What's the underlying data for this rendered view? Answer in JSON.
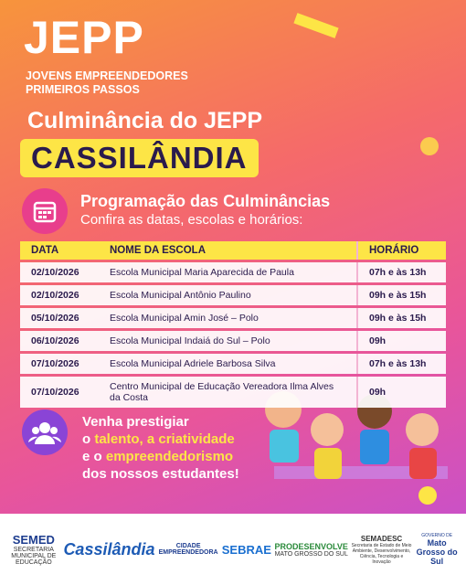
{
  "header": {
    "brand": "JEPP",
    "tagline": [
      "JOVENS EMPREENDEDORES",
      "PRIMEIROS PASSOS"
    ]
  },
  "title": {
    "event": "Culminância do JEPP",
    "city": "CASSILÂNDIA"
  },
  "section": {
    "heading": "Programação das Culminâncias",
    "subheading": "Confira as datas, escolas e horários:"
  },
  "table": {
    "columns": [
      "DATA",
      "NOME DA ESCOLA",
      "HORÁRIO"
    ],
    "rows": [
      [
        "02/10/2026",
        "Escola Municipal Maria Aparecida de Paula",
        "07h e às 13h"
      ],
      [
        "02/10/2026",
        "Escola Municipal Antônio Paulino",
        "09h e às 15h"
      ],
      [
        "05/10/2026",
        "Escola Municipal Amin José – Polo",
        "09h e às 15h"
      ],
      [
        "06/10/2026",
        "Escola Municipal Indaiá do Sul – Polo",
        "09h"
      ],
      [
        "07/10/2026",
        "Escola Municipal Adriele Barbosa Silva",
        "07h e às 13h"
      ],
      [
        "07/10/2026",
        "Centro Municipal de Educação Vereadora Ilma Alves da Costa",
        "09h"
      ]
    ]
  },
  "invite": {
    "line1": "Venha prestigiar",
    "line2a": "o",
    "line2b": "talento, a criatividade",
    "line3a": "e o",
    "line3b": "empreendedorismo",
    "line4": "dos nossos estudantes!"
  },
  "footer": {
    "semed": "SEMED",
    "semed_sub": "SECRETARIA MUNICIPAL DE EDUCAÇÃO",
    "city": "Cassilândia",
    "cidade": "CIDADE EMPREENDEDORA",
    "sebrae": "SEBRAE",
    "prodes": "PRODESENVOLVE",
    "prodes_sub": "MATO GROSSO DO SUL",
    "semadesc": "SEMADESC",
    "semadesc_sub": "Secretaria de Estado de Meio Ambiente, Desenvolvimento, Ciência, Tecnologia e Inovação",
    "gov": "GOVERNO DE",
    "gov_state": "Mato Grosso do Sul"
  }
}
